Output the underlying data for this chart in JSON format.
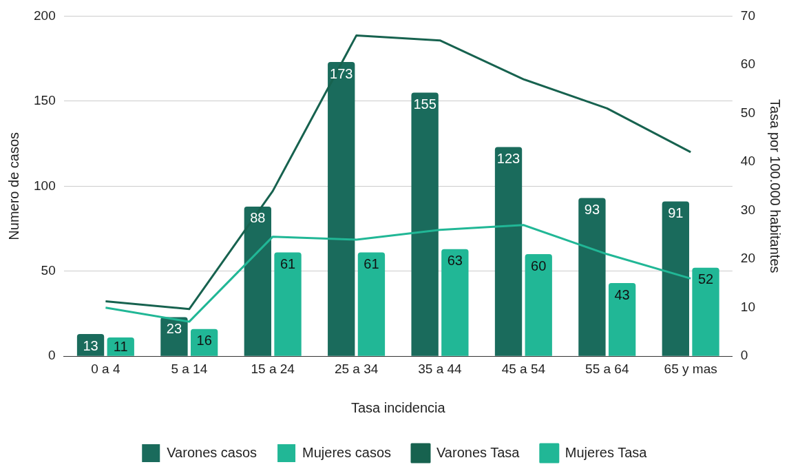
{
  "chart_data": {
    "type": "bar",
    "xlabel": "Tasa incidencia",
    "ylabel": "Numero de casos",
    "y2label": "Tasa por 100.000 habitantes",
    "categories": [
      "0 a 4",
      "5 a 14",
      "15 a 24",
      "25 a 34",
      "35 a 44",
      "45 a 54",
      "55 a 64",
      "65 y mas"
    ],
    "series": [
      {
        "name": "Varones casos",
        "color": "#1a6b5c",
        "values": [
          13,
          23,
          88,
          173,
          155,
          123,
          93,
          91
        ],
        "value_labels": [
          "13",
          "23",
          "88",
          "173",
          "155",
          "123",
          "93",
          "91"
        ]
      },
      {
        "name": "Mujeres casos",
        "color": "#21b796",
        "values": [
          11,
          16,
          61,
          61,
          63,
          60,
          43,
          52
        ],
        "value_labels": [
          "11",
          "16",
          "61",
          "61",
          "63",
          "60",
          "43",
          "52"
        ]
      },
      {
        "name": "Varones Tasa",
        "type": "line",
        "axis": "y2",
        "color": "#17624f",
        "values": [
          11.3,
          9.7,
          34,
          66,
          65,
          57,
          51,
          42
        ]
      },
      {
        "name": "Mujeres Tasa",
        "type": "line",
        "axis": "y2",
        "color": "#21b796",
        "values": [
          10,
          7.1,
          24.6,
          24,
          26,
          27,
          21,
          16
        ]
      }
    ],
    "ylim": [
      0,
      200
    ],
    "yticks": [
      0,
      50,
      100,
      150,
      200
    ],
    "y2lim": [
      0,
      70
    ],
    "y2ticks": [
      0,
      10,
      20,
      30,
      40,
      50,
      60,
      70
    ],
    "grid": "y",
    "legend": "bottom",
    "marker": "none",
    "line_style": "solid"
  }
}
